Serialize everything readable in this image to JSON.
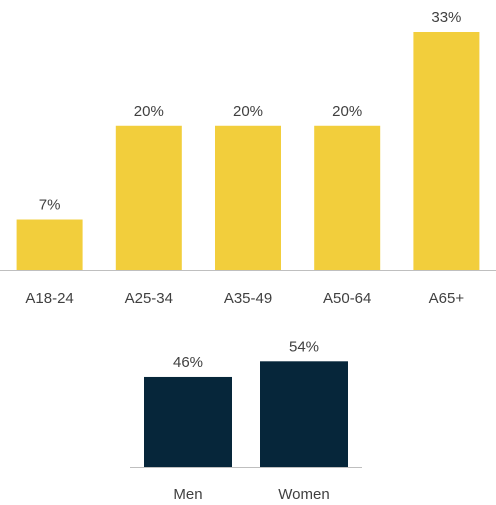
{
  "chart_data": [
    {
      "type": "bar",
      "categories": [
        "A18-24",
        "A25-34",
        "A35-49",
        "A50-64",
        "A65+"
      ],
      "values": [
        7,
        20,
        20,
        20,
        33
      ],
      "data_labels": [
        "7%",
        "20%",
        "20%",
        "20%",
        "33%"
      ],
      "unit": "%",
      "ylim": [
        0,
        33
      ],
      "grid": false,
      "legend": "none",
      "color": "#F2CE3C"
    },
    {
      "type": "bar",
      "categories": [
        "Men",
        "Women"
      ],
      "values": [
        46,
        54
      ],
      "data_labels": [
        "46%",
        "54%"
      ],
      "unit": "%",
      "grid": false,
      "legend": "none",
      "color": "#06263A"
    }
  ],
  "colors": {
    "axis_line": "#BFBFBF",
    "label_text": "#404040"
  }
}
